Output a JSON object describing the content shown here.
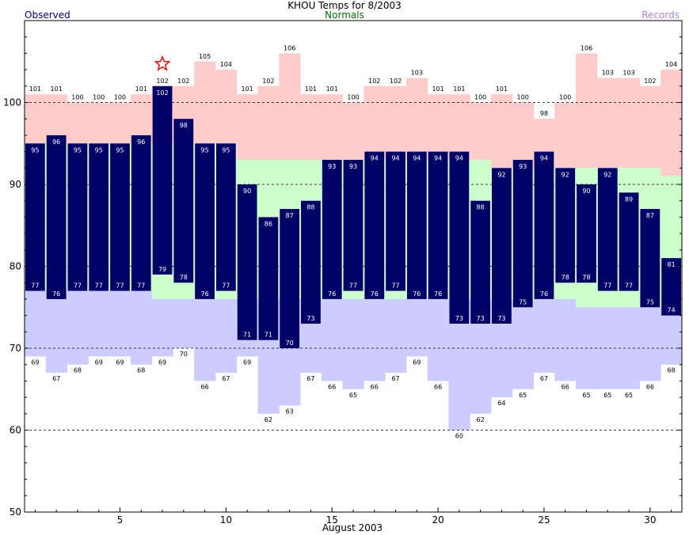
{
  "chart_data": {
    "type": "bar",
    "title": "KHOU Temps for 8/2003",
    "legend": {
      "observed": "Observed",
      "normals": "Normals",
      "records": "Records"
    },
    "xlabel": "August 2003",
    "ylim": [
      50,
      110
    ],
    "yticks": [
      50,
      60,
      70,
      80,
      90,
      100
    ],
    "xticks": [
      5,
      10,
      15,
      20,
      25,
      30
    ],
    "grid": "dashed at 60, 70, 80, 90, 100",
    "record_high_day": 7,
    "days": [
      1,
      2,
      3,
      4,
      5,
      6,
      7,
      8,
      9,
      10,
      11,
      12,
      13,
      14,
      15,
      16,
      17,
      18,
      19,
      20,
      21,
      22,
      23,
      24,
      25,
      26,
      27,
      28,
      29,
      30,
      31
    ],
    "observed_high": [
      95,
      96,
      95,
      95,
      95,
      96,
      102,
      98,
      95,
      95,
      90,
      86,
      87,
      88,
      93,
      93,
      94,
      94,
      94,
      94,
      94,
      88,
      92,
      93,
      94,
      92,
      90,
      92,
      89,
      87,
      81
    ],
    "observed_low": [
      77,
      76,
      77,
      77,
      77,
      77,
      79,
      78,
      76,
      77,
      71,
      71,
      70,
      73,
      76,
      77,
      76,
      77,
      76,
      76,
      73,
      73,
      73,
      75,
      76,
      78,
      78,
      77,
      77,
      75,
      74
    ],
    "record_high": [
      101,
      101,
      100,
      100,
      100,
      101,
      102,
      102,
      105,
      104,
      101,
      102,
      106,
      101,
      101,
      100,
      102,
      102,
      103,
      101,
      101,
      100,
      101,
      100,
      98,
      100,
      106,
      103,
      103,
      102,
      104
    ],
    "record_low": [
      69,
      67,
      68,
      69,
      69,
      68,
      69,
      70,
      66,
      67,
      69,
      62,
      63,
      67,
      66,
      65,
      66,
      67,
      69,
      66,
      60,
      62,
      64,
      65,
      67,
      66,
      65,
      65,
      65,
      66,
      68
    ],
    "normal_high": [
      95,
      95,
      95,
      95,
      95,
      95,
      95,
      95,
      95,
      95,
      93,
      93,
      93,
      93,
      93,
      93,
      93,
      93,
      93,
      93,
      93,
      93,
      92,
      92,
      92,
      92,
      92,
      92,
      92,
      92,
      91
    ],
    "normal_low": [
      77,
      77,
      77,
      77,
      77,
      77,
      76,
      76,
      76,
      76,
      76,
      76,
      76,
      76,
      76,
      76,
      76,
      76,
      76,
      76,
      76,
      76,
      76,
      76,
      76,
      76,
      75,
      75,
      75,
      75,
      75
    ]
  },
  "colors": {
    "observed": "#000066",
    "record_high_band": "#ffcccc",
    "normal_band": "#ccffcc",
    "record_low_band": "#ccccff",
    "record_star": "#ff0000"
  }
}
